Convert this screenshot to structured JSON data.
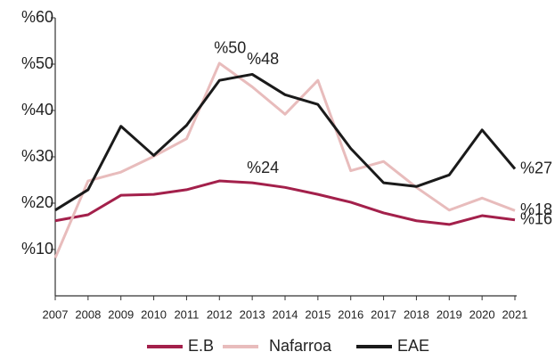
{
  "chart_data": {
    "type": "line",
    "categories": [
      "2007",
      "2008",
      "2009",
      "2010",
      "2011",
      "2012",
      "2013",
      "2014",
      "2015",
      "2016",
      "2017",
      "2018",
      "2019",
      "2020",
      "2021"
    ],
    "series": [
      {
        "name": "E.B",
        "color": "#a3204b",
        "values": [
          16.2,
          17.5,
          21.7,
          21.9,
          22.9,
          24.8,
          24.4,
          23.4,
          21.9,
          20.2,
          17.9,
          16.2,
          15.4,
          17.3,
          16.4
        ],
        "value_labels": [
          null,
          null,
          null,
          null,
          null,
          null,
          "%24",
          null,
          null,
          null,
          null,
          null,
          null,
          null,
          "%16"
        ]
      },
      {
        "name": "Nafarroa",
        "color": "#e8bcbc",
        "values": [
          8.2,
          24.8,
          26.7,
          30.1,
          33.9,
          50.2,
          45.1,
          39.2,
          46.5,
          27.0,
          29.0,
          23.4,
          18.5,
          21.1,
          18.4
        ],
        "value_labels": [
          null,
          null,
          null,
          null,
          null,
          "%50",
          null,
          null,
          null,
          null,
          null,
          null,
          null,
          null,
          "%18"
        ]
      },
      {
        "name": "EAE",
        "color": "#1a1a1a",
        "values": [
          18.5,
          22.9,
          36.6,
          30.3,
          36.8,
          46.5,
          47.8,
          43.4,
          41.3,
          31.8,
          24.4,
          23.6,
          26.1,
          35.8,
          27.4
        ],
        "value_labels": [
          null,
          null,
          null,
          null,
          null,
          null,
          "%48",
          null,
          null,
          null,
          null,
          null,
          null,
          null,
          "%27"
        ]
      }
    ],
    "ylim": [
      0,
      60
    ],
    "yticks": [
      {
        "value": 10,
        "label": "%10"
      },
      {
        "value": 20,
        "label": "%20"
      },
      {
        "value": 30,
        "label": "%30"
      },
      {
        "value": 40,
        "label": "%40"
      },
      {
        "value": 50,
        "label": "%50"
      },
      {
        "value": 60,
        "label": "%60"
      }
    ],
    "legend": "bottom"
  }
}
